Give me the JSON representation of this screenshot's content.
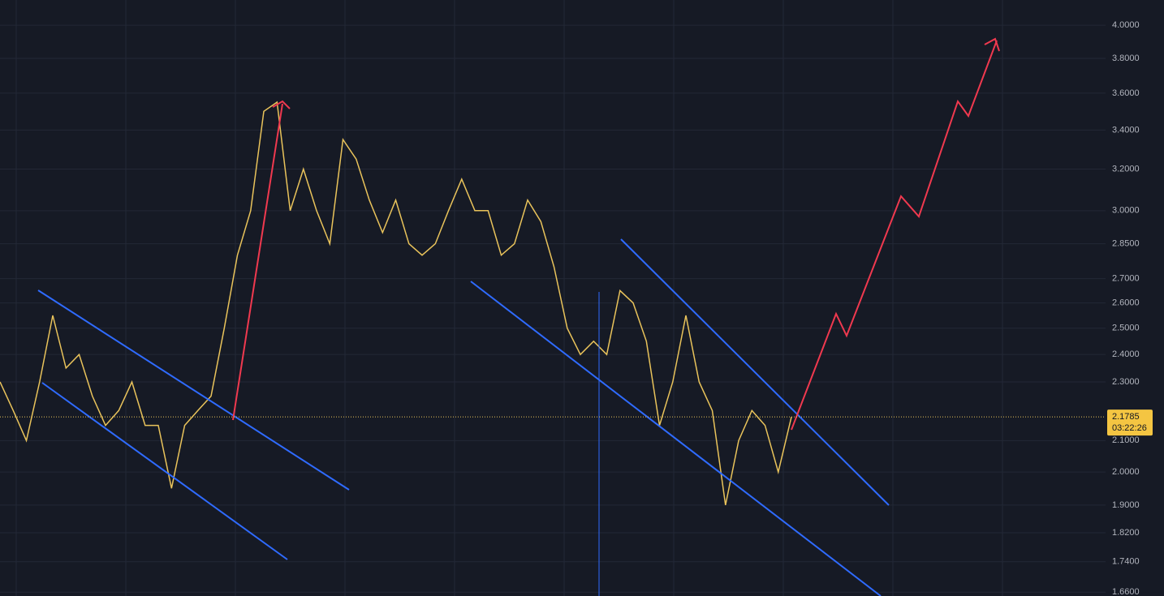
{
  "chart_data": {
    "type": "line",
    "log_scale": true,
    "grid": true,
    "color": "#e9c35b",
    "ylim": [
      1.65,
      4.16
    ],
    "yticks": [
      {
        "value": 4.0,
        "label": "4.0000"
      },
      {
        "value": 3.8,
        "label": "3.8000"
      },
      {
        "value": 3.6,
        "label": "3.6000"
      },
      {
        "value": 3.4,
        "label": "3.4000"
      },
      {
        "value": 3.2,
        "label": "3.2000"
      },
      {
        "value": 3.0,
        "label": "3.0000"
      },
      {
        "value": 2.85,
        "label": "2.8500"
      },
      {
        "value": 2.7,
        "label": "2.7000"
      },
      {
        "value": 2.6,
        "label": "2.6000"
      },
      {
        "value": 2.5,
        "label": "2.5000"
      },
      {
        "value": 2.4,
        "label": "2.4000"
      },
      {
        "value": 2.3,
        "label": "2.3000"
      },
      {
        "value": 2.1,
        "label": "2.1000"
      },
      {
        "value": 2.0,
        "label": "2.0000"
      },
      {
        "value": 1.9,
        "label": "1.9000"
      },
      {
        "value": 1.82,
        "label": "1.8200"
      },
      {
        "value": 1.74,
        "label": "1.7400"
      },
      {
        "value": 1.66,
        "label": "1.6600"
      }
    ],
    "values": [
      2.3,
      2.2,
      2.1,
      2.3,
      2.55,
      2.35,
      2.4,
      2.25,
      2.15,
      2.2,
      2.3,
      2.15,
      2.15,
      1.95,
      2.15,
      2.2,
      2.25,
      2.5,
      2.8,
      3.0,
      3.5,
      3.55,
      3.0,
      3.2,
      3.0,
      2.85,
      3.35,
      3.25,
      3.05,
      2.9,
      3.05,
      2.85,
      2.8,
      2.85,
      3.0,
      3.15,
      3.0,
      3.0,
      2.8,
      2.85,
      3.05,
      2.95,
      2.75,
      2.5,
      2.4,
      2.45,
      2.4,
      2.65,
      2.6,
      2.45,
      2.15,
      2.3,
      2.55,
      2.3,
      2.2,
      1.9,
      2.1,
      2.2,
      2.15,
      2.0,
      2.1785
    ],
    "last_price": {
      "value": 2.1785,
      "label": "2.1785"
    },
    "countdown": "03:22:26"
  }
}
